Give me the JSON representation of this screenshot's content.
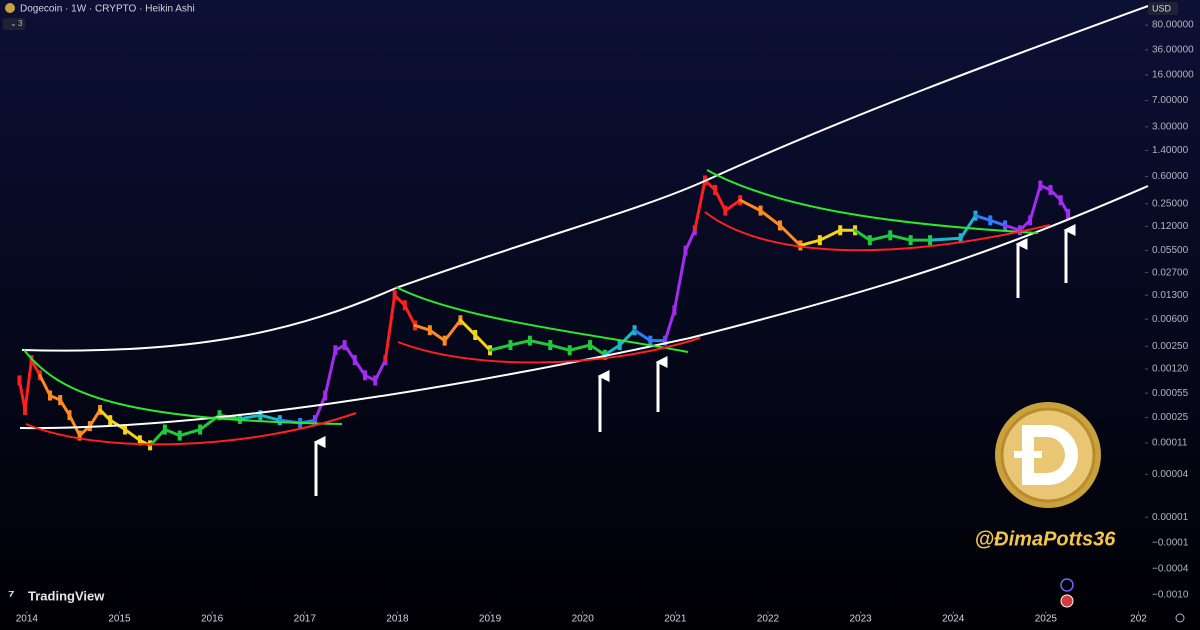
{
  "chart_data": {
    "type": "line",
    "title": "Dogecoin · 1W · CRYPTO · Heikin Ashi",
    "indicator_count": "3",
    "currency": "USD",
    "watermark": "TradingView",
    "author": "@ĐimaPotts36",
    "x": [
      2013.92,
      2013.98,
      2014.05,
      2014.14,
      2014.25,
      2014.36,
      2014.46,
      2014.57,
      2014.68,
      2014.79,
      2014.9,
      2015.06,
      2015.22,
      2015.33,
      2015.49,
      2015.65,
      2015.87,
      2016.08,
      2016.3,
      2016.52,
      2016.73,
      2016.95,
      2017.11,
      2017.22,
      2017.33,
      2017.43,
      2017.54,
      2017.65,
      2017.76,
      2017.87,
      2017.97,
      2018.08,
      2018.19,
      2018.35,
      2018.51,
      2018.68,
      2018.84,
      2019.0,
      2019.22,
      2019.43,
      2019.65,
      2019.86,
      2020.08,
      2020.24,
      2020.4,
      2020.56,
      2020.73,
      2020.89,
      2020.99,
      2021.11,
      2021.21,
      2021.32,
      2021.43,
      2021.54,
      2021.7,
      2021.92,
      2022.13,
      2022.35,
      2022.56,
      2022.78,
      2022.94,
      2023.1,
      2023.32,
      2023.54,
      2023.75,
      2024.08,
      2024.24,
      2024.4,
      2024.56,
      2024.72,
      2024.83,
      2024.94,
      2025.05,
      2025.16,
      2025.24
    ],
    "series": [
      {
        "name": "Dogecoin",
        "values": [
          0.00083,
          0.00032,
          0.0016,
          0.00098,
          0.00051,
          0.00044,
          0.00027,
          0.00014,
          0.00019,
          0.00032,
          0.00023,
          0.00017,
          0.00012,
          0.000102,
          0.00017,
          0.00014,
          0.00017,
          0.00027,
          0.00024,
          0.00027,
          0.00023,
          0.00021,
          0.00023,
          0.00051,
          0.0022,
          0.0026,
          0.0016,
          0.00098,
          0.00083,
          0.0016,
          0.013,
          0.0094,
          0.0049,
          0.0042,
          0.003,
          0.0058,
          0.0036,
          0.0022,
          0.0026,
          0.003,
          0.0026,
          0.0022,
          0.0026,
          0.0019,
          0.0026,
          0.0042,
          0.003,
          0.003,
          0.008,
          0.055,
          0.106,
          0.53,
          0.39,
          0.2,
          0.28,
          0.2,
          0.124,
          0.065,
          0.077,
          0.106,
          0.106,
          0.077,
          0.09,
          0.077,
          0.077,
          0.082,
          0.17,
          0.146,
          0.124,
          0.106,
          0.146,
          0.45,
          0.39,
          0.28,
          0.18
        ],
        "colors": [
          "#ff1f1f",
          "#ff1f1f",
          "#ff1f1f",
          "#ff1f1f",
          "#ff8a1e",
          "#ff8a1e",
          "#ff8a1e",
          "#ff8a1e",
          "#ff8a1e",
          "#ff8a1e",
          "#f5d316",
          "#f5d316",
          "#f5d316",
          "#f5d316",
          "#22c93a",
          "#22c93a",
          "#22c93a",
          "#22c93a",
          "#22c93a",
          "#19b9c9",
          "#19b9c9",
          "#2f7bff",
          "#2f7bff",
          "#a32cf0",
          "#a32cf0",
          "#a32cf0",
          "#a32cf0",
          "#a32cf0",
          "#a32cf0",
          "#a32cf0",
          "#ff1f1f",
          "#ff1f1f",
          "#ff1f1f",
          "#ff8a1e",
          "#ff8a1e",
          "#ff8a1e",
          "#f5d316",
          "#f5d316",
          "#22c93a",
          "#22c93a",
          "#22c93a",
          "#22c93a",
          "#22c93a",
          "#22c93a",
          "#19b9c9",
          "#19b9c9",
          "#2f7bff",
          "#2f7bff",
          "#a32cf0",
          "#a32cf0",
          "#a32cf0",
          "#ff1f1f",
          "#ff1f1f",
          "#ff1f1f",
          "#ff1f1f",
          "#ff8a1e",
          "#ff8a1e",
          "#ff8a1e",
          "#f5d316",
          "#f5d316",
          "#f5d316",
          "#22c93a",
          "#22c93a",
          "#22c93a",
          "#22c93a",
          "#19b9c9",
          "#19b9c9",
          "#2f7bff",
          "#2f7bff",
          "#a32cf0",
          "#a32cf0",
          "#a32cf0",
          "#a32cf0",
          "#a32cf0",
          "#a32cf0"
        ]
      }
    ],
    "xlim": [
      2013.71,
      2026.07
    ],
    "xticks": [
      2014,
      2015,
      2016,
      2017,
      2018,
      2019,
      2020,
      2021,
      2022,
      2023,
      2024,
      2025,
      {
        "value": 2026,
        "label": "202"
      }
    ],
    "ylim": [
      5e-07,
      180
    ],
    "log_scale": true,
    "yticks": [
      {
        "value": 80,
        "label": "80.00000"
      },
      {
        "value": 36,
        "label": "36.00000"
      },
      {
        "value": 16,
        "label": "16.00000"
      },
      {
        "value": 7,
        "label": "7.00000"
      },
      {
        "value": 3,
        "label": "3.00000"
      },
      {
        "value": 1.4,
        "label": "1.40000"
      },
      {
        "value": 0.6,
        "label": "0.60000"
      },
      {
        "value": 0.25,
        "label": "0.25000"
      },
      {
        "value": 0.12,
        "label": "0.12000"
      },
      {
        "value": 0.055,
        "label": "0.05500"
      },
      {
        "value": 0.027,
        "label": "0.02700"
      },
      {
        "value": 0.013,
        "label": "0.01300"
      },
      {
        "value": 0.006,
        "label": "0.00600"
      },
      {
        "value": 0.0025,
        "label": "0.00250"
      },
      {
        "value": 0.0012,
        "label": "0.00120"
      },
      {
        "value": 0.00055,
        "label": "0.00055"
      },
      {
        "value": 0.00025,
        "label": "0.00025"
      },
      {
        "value": 0.00011,
        "label": "0.00011"
      },
      {
        "value": 4e-05,
        "label": "0.00004"
      },
      {
        "value": 1e-05,
        "label": "0.00001"
      }
    ],
    "y_extra_labels": [
      "−0.0001",
      "−0.0004",
      "−0.0010"
    ],
    "grid": false
  }
}
